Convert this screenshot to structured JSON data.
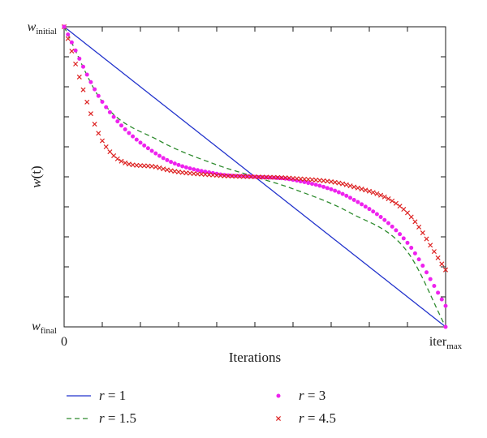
{
  "chart_data": {
    "type": "line",
    "title": "",
    "xlabel": "Iterations",
    "ylabel_main": "w",
    "ylabel_arg": "(t)",
    "x_ticks": {
      "start": "0",
      "end_main": "iter",
      "end_sub": "max"
    },
    "y_ticks": {
      "top_main": "w",
      "top_sub": "initial",
      "bottom_main": "w",
      "bottom_sub": "final"
    },
    "xlim": [
      0,
      1
    ],
    "ylim": [
      0,
      1
    ],
    "grid": false,
    "legend_position": "bottom",
    "series": [
      {
        "name_var": "r",
        "name_eq": " = 1",
        "r": 1,
        "style": "solid",
        "color": "#2233cc",
        "x": [
          0,
          0.25,
          0.5,
          0.75,
          1
        ],
        "y": [
          1,
          0.75,
          0.5,
          0.25,
          0
        ]
      },
      {
        "name_var": "r",
        "name_eq": " = 1.5",
        "r": 1.5,
        "style": "dashed",
        "color": "#2e8b2e",
        "x": [
          0,
          0.1,
          0.25,
          0.4,
          0.5,
          0.6,
          0.75,
          0.9,
          1
        ],
        "y": [
          1,
          0.75,
          0.62,
          0.54,
          0.5,
          0.46,
          0.38,
          0.25,
          0
        ]
      },
      {
        "name_var": "r",
        "name_eq": " = 3",
        "r": 3,
        "style": "dots",
        "color": "#ee22ee",
        "x": [
          0,
          0.1,
          0.25,
          0.4,
          0.5,
          0.6,
          0.75,
          0.9,
          1
        ],
        "y": [
          1,
          0.75,
          0.57,
          0.51,
          0.5,
          0.49,
          0.43,
          0.28,
          0.07
        ]
      },
      {
        "name_var": "r",
        "name_eq": " = 4.5",
        "r": 4.5,
        "style": "cross",
        "color": "#dd2222",
        "x": [
          0,
          0.1,
          0.25,
          0.4,
          0.5,
          0.6,
          0.75,
          0.9,
          1
        ],
        "y": [
          1,
          0.62,
          0.53,
          0.505,
          0.5,
          0.495,
          0.47,
          0.38,
          0.19
        ]
      }
    ]
  }
}
